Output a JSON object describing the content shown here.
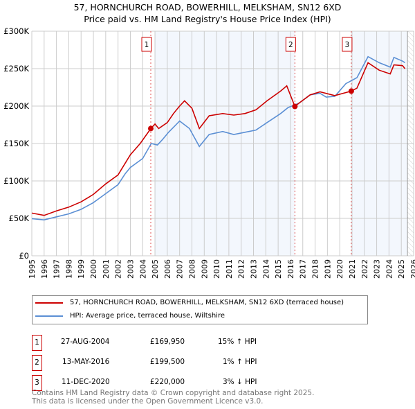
{
  "chart_data": {
    "type": "line",
    "title": "57, HORNCHURCH ROAD, BOWERHILL, MELKSHAM, SN12 6XD",
    "subtitle": "Price paid vs. HM Land Registry's House Price Index (HPI)",
    "xlim": [
      1995,
      2026
    ],
    "ylim": [
      0,
      300000
    ],
    "y_ticks": [
      {
        "v": 0,
        "label": "£0"
      },
      {
        "v": 50000,
        "label": "£50K"
      },
      {
        "v": 100000,
        "label": "£100K"
      },
      {
        "v": 150000,
        "label": "£150K"
      },
      {
        "v": 200000,
        "label": "£200K"
      },
      {
        "v": 250000,
        "label": "£250K"
      },
      {
        "v": 300000,
        "label": "£300K"
      }
    ],
    "x_ticks": [
      "1995",
      "1996",
      "1997",
      "1998",
      "1999",
      "2000",
      "2001",
      "2002",
      "2003",
      "2004",
      "2005",
      "2006",
      "2007",
      "2008",
      "2009",
      "2010",
      "2011",
      "2012",
      "2013",
      "2014",
      "2015",
      "2016",
      "2017",
      "2018",
      "2019",
      "2020",
      "2021",
      "2022",
      "2023",
      "2024",
      "2025",
      "2026"
    ],
    "grid": true,
    "series": [
      {
        "name": "57, HORNCHURCH ROAD, BOWERHILL, MELKSHAM, SN12 6XD (terraced house)",
        "color": "#cc0000",
        "x": [
          1995,
          1996,
          1997,
          1998,
          1999,
          2000,
          2001,
          2002,
          2003,
          2003.8,
          2004.66,
          2005,
          2005.3,
          2006,
          2006.5,
          2007,
          2007.4,
          2008,
          2008.6,
          2009.4,
          2010.5,
          2011.4,
          2012.3,
          2013.2,
          2014.1,
          2015.2,
          2015.7,
          2016.36,
          2016.7,
          2017.6,
          2018.4,
          2019.6,
          2020.94,
          2021.4,
          2022.3,
          2023.2,
          2024.1,
          2024.4,
          2025.1,
          2025.3
        ],
        "y": [
          57000,
          54000,
          60000,
          65000,
          72000,
          82000,
          96000,
          108000,
          135000,
          150000,
          169950,
          176000,
          170000,
          178000,
          190000,
          200000,
          207000,
          197000,
          170000,
          187000,
          190000,
          188000,
          190000,
          195000,
          207000,
          220000,
          227000,
          199500,
          204000,
          215000,
          219000,
          214000,
          220000,
          224000,
          258000,
          248000,
          243000,
          255000,
          254000,
          250000
        ]
      },
      {
        "name": "HPI: Average price, terraced house, Wiltshire",
        "color": "#5b8fd4",
        "x": [
          1995,
          1996,
          1997,
          1998,
          1999,
          2000,
          2001,
          2002,
          2002.6,
          2003,
          2004,
          2004.7,
          2005.2,
          2005.6,
          2006.1,
          2007,
          2007.8,
          2008.6,
          2009.4,
          2010.5,
          2011.4,
          2012.3,
          2013.2,
          2014.1,
          2015.2,
          2015.8,
          2016.7,
          2017.6,
          2018.4,
          2018.9,
          2019.6,
          2020.5,
          2021.4,
          2022.3,
          2023.2,
          2024.1,
          2024.4,
          2025.1,
          2025.3
        ],
        "y": [
          49500,
          48000,
          52000,
          56000,
          62000,
          71000,
          83000,
          95000,
          110000,
          118000,
          130000,
          150000,
          148000,
          155000,
          165000,
          180000,
          170000,
          146000,
          162000,
          166000,
          162000,
          165000,
          168000,
          178000,
          190000,
          198000,
          204000,
          215000,
          217000,
          212000,
          213000,
          230000,
          238000,
          266000,
          258000,
          252000,
          265000,
          260000,
          258000
        ]
      }
    ],
    "sales": [
      {
        "label": "1",
        "x": 2004.66,
        "y": 169950,
        "date": "27-AUG-2004",
        "price": "£169,950",
        "hpi": "15% ↑ HPI"
      },
      {
        "label": "2",
        "x": 2016.36,
        "y": 199500,
        "date": "13-MAY-2016",
        "price": "£199,500",
        "hpi": "1% ↑ HPI"
      },
      {
        "label": "3",
        "x": 2020.94,
        "y": 220000,
        "date": "11-DEC-2020",
        "price": "£220,000",
        "hpi": "3% ↓ HPI"
      }
    ],
    "legend_position": "below"
  },
  "footer": {
    "line1": "Contains HM Land Registry data © Crown copyright and database right 2025.",
    "line2": "This data is licensed under the Open Government Licence v3.0."
  }
}
